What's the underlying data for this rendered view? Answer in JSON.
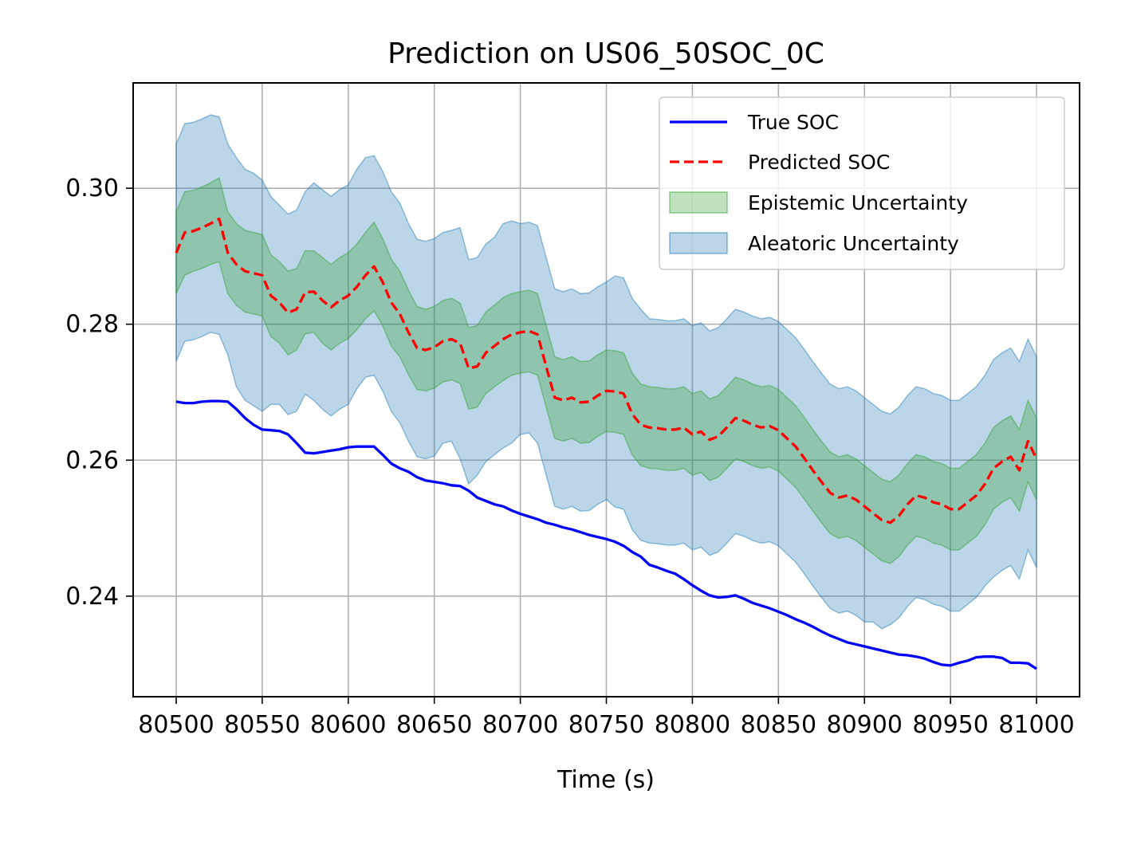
{
  "chart_data": {
    "type": "line",
    "title": "Prediction on US06_50SOC_0C",
    "xlabel": "Time (s)",
    "ylabel": "",
    "xlim": [
      80475,
      81025
    ],
    "ylim": [
      0.2252,
      0.3155
    ],
    "xticks": [
      80500,
      80550,
      80600,
      80650,
      80700,
      80750,
      80800,
      80850,
      80900,
      80950,
      81000
    ],
    "xtick_labels": [
      "80500",
      "80550",
      "80600",
      "80650",
      "80700",
      "80750",
      "80800",
      "80850",
      "80900",
      "80950",
      "81000"
    ],
    "yticks": [
      0.24,
      0.26,
      0.28,
      0.3
    ],
    "ytick_labels": [
      "0.24",
      "0.26",
      "0.28",
      "0.30"
    ],
    "grid": true,
    "legend_position": "top-right",
    "colors": {
      "true_soc": "#0000ff",
      "predicted_soc": "#ff0000",
      "epistemic": "#2ca02c",
      "aleatoric": "#1f77b4"
    },
    "x": [
      80500,
      80505,
      80510,
      80515,
      80520,
      80525,
      80530,
      80535,
      80540,
      80545,
      80550,
      80555,
      80560,
      80565,
      80570,
      80575,
      80580,
      80585,
      80590,
      80595,
      80600,
      80605,
      80610,
      80615,
      80620,
      80625,
      80630,
      80635,
      80640,
      80645,
      80650,
      80655,
      80660,
      80665,
      80670,
      80675,
      80680,
      80685,
      80690,
      80695,
      80700,
      80705,
      80710,
      80715,
      80720,
      80725,
      80730,
      80735,
      80740,
      80745,
      80750,
      80755,
      80760,
      80765,
      80770,
      80775,
      80780,
      80785,
      80790,
      80795,
      80800,
      80805,
      80810,
      80815,
      80820,
      80825,
      80830,
      80835,
      80840,
      80845,
      80850,
      80855,
      80860,
      80865,
      80870,
      80875,
      80880,
      80885,
      80890,
      80895,
      80900,
      80905,
      80910,
      80915,
      80920,
      80925,
      80930,
      80935,
      80940,
      80945,
      80950,
      80955,
      80960,
      80965,
      80970,
      80975,
      80980,
      80985,
      80990,
      80995,
      81000
    ],
    "series": [
      {
        "name": "True SOC",
        "style": "solid",
        "values": [
          0.2686,
          0.2684,
          0.2684,
          0.2686,
          0.2687,
          0.2687,
          0.2686,
          0.2675,
          0.2662,
          0.2652,
          0.2645,
          0.2644,
          0.2643,
          0.2638,
          0.2625,
          0.2611,
          0.261,
          0.2612,
          0.2614,
          0.2616,
          0.2619,
          0.262,
          0.262,
          0.262,
          0.2608,
          0.2595,
          0.2588,
          0.2583,
          0.2575,
          0.257,
          0.2568,
          0.2566,
          0.2563,
          0.2562,
          0.2555,
          0.2545,
          0.254,
          0.2535,
          0.2532,
          0.2526,
          0.2521,
          0.2517,
          0.2513,
          0.2508,
          0.2505,
          0.2501,
          0.2498,
          0.2494,
          0.249,
          0.2487,
          0.2484,
          0.248,
          0.2474,
          0.2465,
          0.2458,
          0.2446,
          0.2442,
          0.2437,
          0.2433,
          0.2425,
          0.2416,
          0.2408,
          0.2401,
          0.2398,
          0.2399,
          0.2401,
          0.2396,
          0.239,
          0.2386,
          0.2382,
          0.2377,
          0.2372,
          0.2366,
          0.2361,
          0.2355,
          0.2348,
          0.2342,
          0.2337,
          0.2332,
          0.2329,
          0.2326,
          0.2323,
          0.232,
          0.2317,
          0.2314,
          0.2313,
          0.2311,
          0.2308,
          0.2303,
          0.2299,
          0.2298,
          0.2302,
          0.2305,
          0.231,
          0.2311,
          0.2311,
          0.2309,
          0.2302,
          0.2302,
          0.2301,
          0.2293
        ]
      },
      {
        "name": "Predicted SOC",
        "style": "dashed",
        "values": [
          0.2905,
          0.2935,
          0.2937,
          0.2942,
          0.2948,
          0.2955,
          0.2905,
          0.2888,
          0.2878,
          0.2875,
          0.2872,
          0.2842,
          0.2832,
          0.2817,
          0.2822,
          0.2847,
          0.2848,
          0.2835,
          0.2825,
          0.2835,
          0.2842,
          0.2855,
          0.2872,
          0.2885,
          0.2862,
          0.2832,
          0.2815,
          0.2788,
          0.2765,
          0.2762,
          0.2766,
          0.2775,
          0.2778,
          0.2772,
          0.2735,
          0.2738,
          0.2758,
          0.2768,
          0.2778,
          0.2785,
          0.2788,
          0.279,
          0.2785,
          0.2738,
          0.2692,
          0.2688,
          0.2692,
          0.2685,
          0.2686,
          0.2695,
          0.2702,
          0.2701,
          0.2698,
          0.2668,
          0.2652,
          0.2648,
          0.2647,
          0.2645,
          0.2645,
          0.2648,
          0.2638,
          0.2642,
          0.263,
          0.2635,
          0.2648,
          0.2662,
          0.2658,
          0.2652,
          0.2648,
          0.265,
          0.2644,
          0.2632,
          0.262,
          0.2603,
          0.2585,
          0.2568,
          0.2552,
          0.2545,
          0.2548,
          0.2542,
          0.2532,
          0.2522,
          0.2512,
          0.2508,
          0.2518,
          0.2535,
          0.2548,
          0.2545,
          0.2538,
          0.2535,
          0.2528,
          0.2528,
          0.2538,
          0.2548,
          0.2565,
          0.2588,
          0.2598,
          0.2605,
          0.2585,
          0.2628,
          0.2602
        ]
      }
    ],
    "bands": [
      {
        "name": "Epistemic Uncertainty",
        "lower": [
          0.2845,
          0.2872,
          0.2878,
          0.2882,
          0.2888,
          0.2892,
          0.2845,
          0.2828,
          0.2818,
          0.2815,
          0.2812,
          0.2782,
          0.2772,
          0.2755,
          0.2762,
          0.2786,
          0.2788,
          0.2772,
          0.2762,
          0.2772,
          0.2779,
          0.2792,
          0.2808,
          0.282,
          0.2798,
          0.2768,
          0.2752,
          0.2726,
          0.2704,
          0.2702,
          0.2706,
          0.2715,
          0.2718,
          0.2713,
          0.2675,
          0.2678,
          0.2698,
          0.2708,
          0.2717,
          0.2725,
          0.2728,
          0.273,
          0.2725,
          0.2678,
          0.2632,
          0.2628,
          0.2632,
          0.2625,
          0.2626,
          0.2635,
          0.2642,
          0.2641,
          0.2638,
          0.2608,
          0.2592,
          0.2588,
          0.2587,
          0.2585,
          0.2585,
          0.2588,
          0.2578,
          0.2582,
          0.257,
          0.2575,
          0.2588,
          0.2602,
          0.2598,
          0.2592,
          0.2588,
          0.259,
          0.2584,
          0.2572,
          0.256,
          0.2543,
          0.2525,
          0.2508,
          0.2492,
          0.2485,
          0.2488,
          0.2482,
          0.2472,
          0.2462,
          0.2452,
          0.2448,
          0.2458,
          0.2475,
          0.2488,
          0.2485,
          0.2478,
          0.2475,
          0.2468,
          0.2468,
          0.2478,
          0.2488,
          0.2505,
          0.2528,
          0.2538,
          0.2545,
          0.2525,
          0.2568,
          0.2542
        ],
        "upper": [
          0.2965,
          0.2995,
          0.2997,
          0.3002,
          0.3008,
          0.3015,
          0.2965,
          0.2948,
          0.2938,
          0.2935,
          0.2932,
          0.2902,
          0.2892,
          0.2878,
          0.2882,
          0.2908,
          0.2908,
          0.2898,
          0.2888,
          0.2898,
          0.2905,
          0.2918,
          0.2935,
          0.295,
          0.2926,
          0.2896,
          0.2878,
          0.285,
          0.2826,
          0.2822,
          0.2826,
          0.2835,
          0.2838,
          0.2831,
          0.2795,
          0.2798,
          0.2818,
          0.2828,
          0.2839,
          0.2845,
          0.2848,
          0.285,
          0.2845,
          0.2798,
          0.2752,
          0.2748,
          0.2752,
          0.2745,
          0.2746,
          0.2755,
          0.2762,
          0.2761,
          0.2758,
          0.2728,
          0.2712,
          0.2708,
          0.2707,
          0.2705,
          0.2705,
          0.2708,
          0.2698,
          0.2702,
          0.269,
          0.2695,
          0.2708,
          0.2722,
          0.2718,
          0.2712,
          0.2708,
          0.271,
          0.2704,
          0.2692,
          0.268,
          0.2663,
          0.2645,
          0.2628,
          0.2612,
          0.2605,
          0.2608,
          0.2602,
          0.2592,
          0.2582,
          0.2572,
          0.2568,
          0.2578,
          0.2595,
          0.2608,
          0.2605,
          0.2598,
          0.2595,
          0.2588,
          0.2588,
          0.2598,
          0.2608,
          0.2625,
          0.2648,
          0.2658,
          0.2665,
          0.2645,
          0.2688,
          0.2662
        ]
      },
      {
        "name": "Aleatoric Uncertainty",
        "lower": [
          0.2745,
          0.2775,
          0.2777,
          0.2782,
          0.2788,
          0.2785,
          0.2755,
          0.2708,
          0.2688,
          0.268,
          0.2672,
          0.2682,
          0.2682,
          0.2667,
          0.2672,
          0.2697,
          0.2688,
          0.2675,
          0.2665,
          0.2675,
          0.2682,
          0.2705,
          0.2722,
          0.2725,
          0.2702,
          0.2672,
          0.2655,
          0.2628,
          0.2605,
          0.2602,
          0.2606,
          0.2625,
          0.2628,
          0.2602,
          0.2565,
          0.2578,
          0.2598,
          0.2608,
          0.2618,
          0.2625,
          0.2638,
          0.264,
          0.2625,
          0.2578,
          0.2532,
          0.2528,
          0.2532,
          0.2525,
          0.2526,
          0.2535,
          0.2542,
          0.2531,
          0.2528,
          0.2498,
          0.2482,
          0.2478,
          0.2477,
          0.2475,
          0.2475,
          0.2478,
          0.2468,
          0.2472,
          0.246,
          0.2465,
          0.2478,
          0.2492,
          0.2488,
          0.2482,
          0.2478,
          0.248,
          0.2474,
          0.2462,
          0.245,
          0.2433,
          0.2415,
          0.2398,
          0.2382,
          0.2375,
          0.2378,
          0.2372,
          0.2362,
          0.2362,
          0.2352,
          0.2358,
          0.2368,
          0.2385,
          0.2398,
          0.2395,
          0.2388,
          0.2385,
          0.2378,
          0.2378,
          0.2388,
          0.2398,
          0.2415,
          0.2428,
          0.2438,
          0.2445,
          0.2425,
          0.2468,
          0.2442
        ],
        "upper": [
          0.3065,
          0.3095,
          0.3097,
          0.3102,
          0.3108,
          0.3105,
          0.3065,
          0.3045,
          0.3028,
          0.3022,
          0.3012,
          0.2988,
          0.2975,
          0.2962,
          0.2968,
          0.2995,
          0.3008,
          0.2998,
          0.2988,
          0.2998,
          0.3005,
          0.3028,
          0.3045,
          0.3048,
          0.3025,
          0.2995,
          0.2978,
          0.2948,
          0.2925,
          0.2922,
          0.2926,
          0.2935,
          0.2938,
          0.2942,
          0.2895,
          0.2898,
          0.2918,
          0.2928,
          0.2948,
          0.2952,
          0.2948,
          0.295,
          0.2945,
          0.2898,
          0.2852,
          0.2848,
          0.2852,
          0.2845,
          0.2846,
          0.2855,
          0.2862,
          0.2871,
          0.2868,
          0.2838,
          0.2822,
          0.2808,
          0.2807,
          0.2805,
          0.2805,
          0.2808,
          0.2798,
          0.2802,
          0.279,
          0.2795,
          0.2808,
          0.2822,
          0.2818,
          0.2812,
          0.2808,
          0.281,
          0.2804,
          0.2792,
          0.278,
          0.2763,
          0.2745,
          0.2728,
          0.2712,
          0.2705,
          0.2708,
          0.2702,
          0.2692,
          0.2682,
          0.2672,
          0.2668,
          0.2678,
          0.2695,
          0.2708,
          0.2705,
          0.2698,
          0.2695,
          0.2688,
          0.2688,
          0.2698,
          0.2708,
          0.2725,
          0.2748,
          0.2758,
          0.2765,
          0.2745,
          0.2778,
          0.2752
        ]
      }
    ],
    "legend": [
      {
        "label": "True SOC",
        "kind": "line",
        "style": "solid"
      },
      {
        "label": "Predicted SOC",
        "kind": "line",
        "style": "dashed"
      },
      {
        "label": "Epistemic Uncertainty",
        "kind": "patch"
      },
      {
        "label": "Aleatoric Uncertainty",
        "kind": "patch"
      }
    ]
  }
}
